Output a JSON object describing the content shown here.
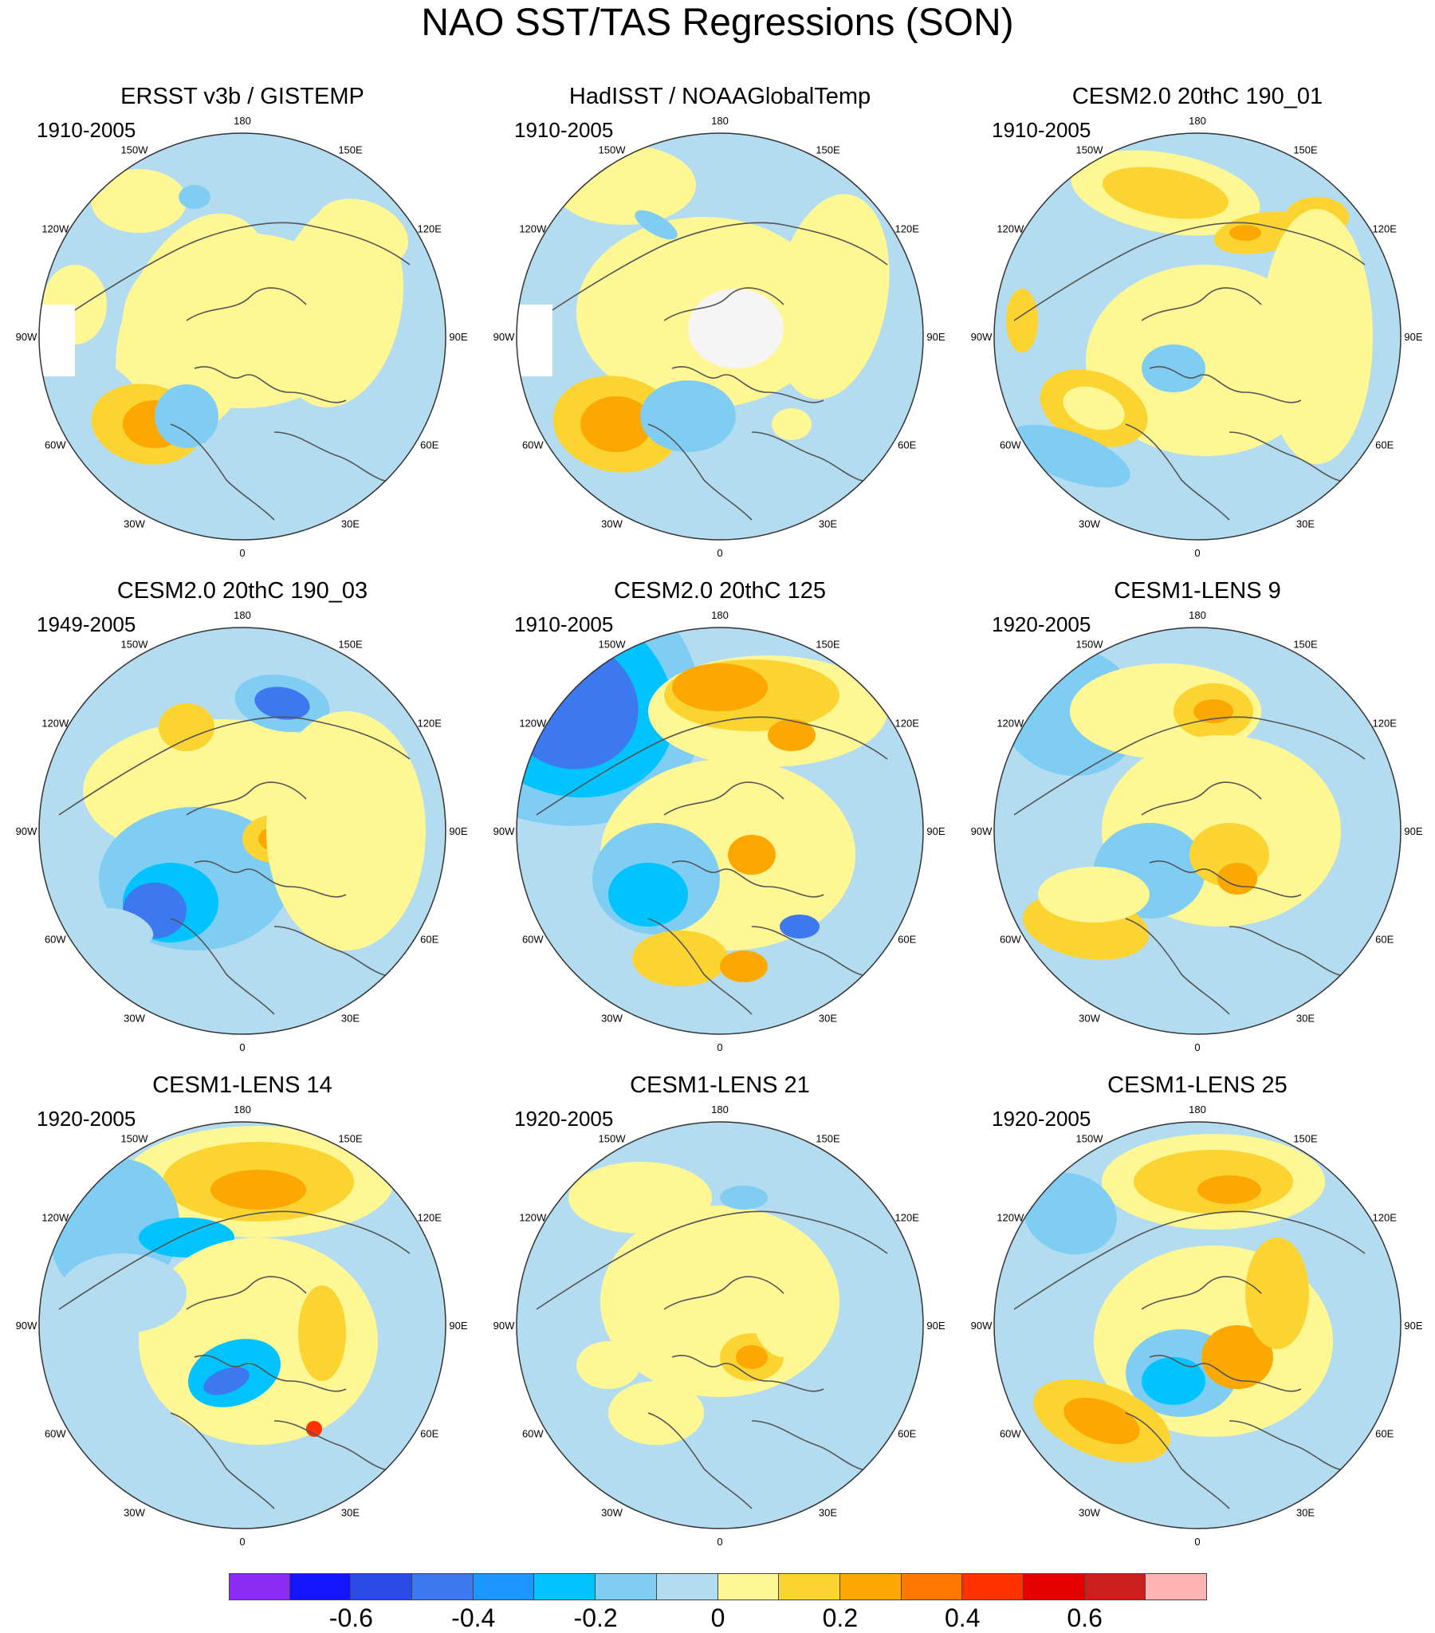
{
  "title": "NAO SST/TAS Regressions (SON)",
  "meridian_labels": [
    "180",
    "150E",
    "120E",
    "90E",
    "60E",
    "30E",
    "0",
    "30W",
    "60W",
    "90W",
    "120W",
    "150W"
  ],
  "panels": [
    {
      "title": "ERSST v3b / GISTEMP",
      "period": "1910-2005"
    },
    {
      "title": "HadISST / NOAAGlobalTemp",
      "period": "1910-2005"
    },
    {
      "title": "CESM2.0 20thC 190_01",
      "period": "1910-2005"
    },
    {
      "title": "CESM2.0 20thC 190_03",
      "period": "1949-2005"
    },
    {
      "title": "CESM2.0 20thC 125",
      "period": "1910-2005"
    },
    {
      "title": "CESM1-LENS 9",
      "period": "1920-2005"
    },
    {
      "title": "CESM1-LENS 14",
      "period": "1920-2005"
    },
    {
      "title": "CESM1-LENS 21",
      "period": "1920-2005"
    },
    {
      "title": "CESM1-LENS 25",
      "period": "1920-2005"
    }
  ],
  "colorbar": {
    "colors": [
      "#8b2cf5",
      "#1414ff",
      "#2a4ae6",
      "#3c78f0",
      "#1e96ff",
      "#00c3ff",
      "#7fcdf2",
      "#b4dcf0",
      "#fff794",
      "#fcd431",
      "#fca800",
      "#ff7800",
      "#ff3200",
      "#e60000",
      "#cd1e1e",
      "#ffb4b4"
    ],
    "labels": [
      "-0.6",
      "-0.4",
      "-0.2",
      "0",
      "0.2",
      "0.4",
      "0.6"
    ],
    "label_boundaries": [
      2,
      4,
      6,
      8,
      10,
      12,
      14
    ]
  }
}
